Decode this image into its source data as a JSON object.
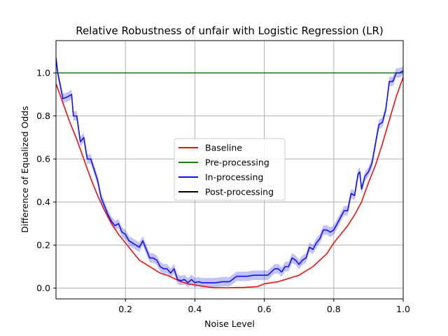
{
  "chart_data": {
    "type": "line",
    "title": "Relative Robustness of unfair with Logistic Regression (LR)",
    "xlabel": "Noise Level",
    "ylabel": "Difference of Equalized Odds",
    "xlim": [
      0.0,
      1.0
    ],
    "ylim": [
      -0.05,
      1.15
    ],
    "xticks": [
      0.2,
      0.4,
      0.6,
      0.8,
      1.0
    ],
    "xtick_labels": [
      "0.2",
      "0.4",
      "0.6",
      "0.8",
      "1.0"
    ],
    "yticks": [
      0.0,
      0.2,
      0.4,
      0.6,
      0.8,
      1.0
    ],
    "ytick_labels": [
      "0.0",
      "0.2",
      "0.4",
      "0.6",
      "0.8",
      "1.0"
    ],
    "grid": true,
    "legend_position": "center",
    "series": [
      {
        "name": "Baseline",
        "color": "#ee1111",
        "x": [
          0.0,
          0.02,
          0.04,
          0.06,
          0.08,
          0.1,
          0.12,
          0.14,
          0.16,
          0.18,
          0.2,
          0.22,
          0.24,
          0.26,
          0.28,
          0.3,
          0.32,
          0.34,
          0.36,
          0.38,
          0.4,
          0.42,
          0.44,
          0.46,
          0.48,
          0.5,
          0.52,
          0.54,
          0.56,
          0.58,
          0.6,
          0.62,
          0.64,
          0.66,
          0.68,
          0.7,
          0.72,
          0.74,
          0.76,
          0.78,
          0.8,
          0.82,
          0.84,
          0.86,
          0.88,
          0.9,
          0.92,
          0.94,
          0.96,
          0.98,
          1.0
        ],
        "values": [
          0.95,
          0.86,
          0.77,
          0.69,
          0.6,
          0.51,
          0.43,
          0.36,
          0.3,
          0.25,
          0.21,
          0.17,
          0.13,
          0.11,
          0.09,
          0.07,
          0.06,
          0.045,
          0.03,
          0.02,
          0.015,
          0.01,
          0.005,
          0.002,
          0.002,
          0.002,
          0.003,
          0.003,
          0.005,
          0.007,
          0.02,
          0.025,
          0.03,
          0.04,
          0.05,
          0.06,
          0.08,
          0.1,
          0.13,
          0.16,
          0.21,
          0.25,
          0.29,
          0.34,
          0.4,
          0.49,
          0.57,
          0.67,
          0.78,
          0.89,
          0.98
        ]
      },
      {
        "name": "Pre-processing",
        "color": "#118811",
        "x": [
          0.0,
          1.0
        ],
        "values": [
          1.0,
          1.0
        ]
      },
      {
        "name": "In-processing",
        "color": "#1111ee",
        "x": [
          0.0,
          0.005,
          0.02,
          0.035,
          0.045,
          0.05,
          0.06,
          0.07,
          0.08,
          0.09,
          0.1,
          0.11,
          0.12,
          0.13,
          0.14,
          0.15,
          0.16,
          0.17,
          0.18,
          0.19,
          0.2,
          0.21,
          0.22,
          0.23,
          0.24,
          0.25,
          0.26,
          0.27,
          0.28,
          0.29,
          0.3,
          0.31,
          0.32,
          0.33,
          0.34,
          0.35,
          0.36,
          0.37,
          0.38,
          0.39,
          0.4,
          0.41,
          0.42,
          0.43,
          0.44,
          0.45,
          0.46,
          0.48,
          0.5,
          0.52,
          0.53,
          0.55,
          0.57,
          0.59,
          0.61,
          0.63,
          0.64,
          0.65,
          0.66,
          0.67,
          0.68,
          0.69,
          0.7,
          0.71,
          0.72,
          0.73,
          0.74,
          0.75,
          0.76,
          0.77,
          0.78,
          0.79,
          0.8,
          0.81,
          0.82,
          0.83,
          0.84,
          0.85,
          0.86,
          0.87,
          0.875,
          0.88,
          0.89,
          0.9,
          0.91,
          0.92,
          0.93,
          0.94,
          0.95,
          0.96,
          0.97,
          0.98,
          0.99,
          1.0
        ],
        "values": [
          1.07,
          1.0,
          0.88,
          0.89,
          0.9,
          0.8,
          0.8,
          0.68,
          0.7,
          0.6,
          0.6,
          0.55,
          0.5,
          0.42,
          0.38,
          0.34,
          0.31,
          0.29,
          0.3,
          0.26,
          0.25,
          0.22,
          0.21,
          0.2,
          0.19,
          0.22,
          0.18,
          0.14,
          0.14,
          0.13,
          0.1,
          0.09,
          0.09,
          0.07,
          0.09,
          0.04,
          0.035,
          0.04,
          0.025,
          0.04,
          0.025,
          0.03,
          0.025,
          0.025,
          0.025,
          0.025,
          0.025,
          0.03,
          0.03,
          0.055,
          0.055,
          0.055,
          0.06,
          0.06,
          0.06,
          0.09,
          0.09,
          0.075,
          0.1,
          0.1,
          0.14,
          0.13,
          0.11,
          0.13,
          0.14,
          0.19,
          0.18,
          0.21,
          0.23,
          0.27,
          0.27,
          0.26,
          0.27,
          0.3,
          0.33,
          0.36,
          0.36,
          0.44,
          0.43,
          0.53,
          0.54,
          0.46,
          0.52,
          0.54,
          0.58,
          0.67,
          0.76,
          0.77,
          0.83,
          0.96,
          0.96,
          1.0,
          1.0,
          1.01
        ]
      },
      {
        "name": "Post-processing",
        "color": "#000000",
        "x": [],
        "values": []
      }
    ]
  }
}
